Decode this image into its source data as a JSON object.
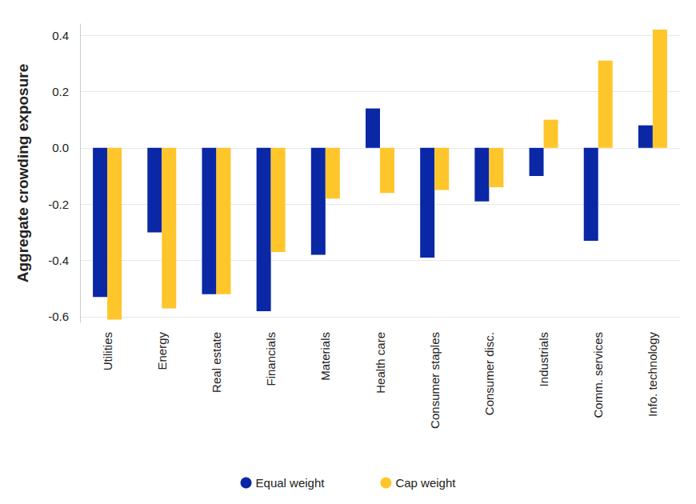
{
  "chart_data": {
    "type": "bar",
    "y_label": "Aggregate crowding exposure",
    "categories": [
      "Utilities",
      "Energy",
      "Real estate",
      "Financials",
      "Materials",
      "Health care",
      "Consumer staples",
      "Consumer disc.",
      "Industrials",
      "Comm. services",
      "Info. technology"
    ],
    "series": [
      {
        "name": "Equal weight",
        "color": "#0a27a6",
        "values": [
          -0.53,
          -0.3,
          -0.52,
          -0.58,
          -0.38,
          0.14,
          -0.39,
          -0.19,
          -0.1,
          -0.33,
          0.08
        ]
      },
      {
        "name": "Cap weight",
        "color": "#ffc62b",
        "values": [
          -0.61,
          -0.57,
          -0.52,
          -0.37,
          -0.18,
          -0.16,
          -0.15,
          -0.14,
          0.1,
          0.31,
          0.42
        ]
      }
    ],
    "ylim": [
      -0.62,
      0.44
    ],
    "yticks": [
      -0.6,
      -0.4,
      -0.2,
      {
        "value": 0,
        "label": "0.0"
      },
      0.2,
      0.4
    ],
    "grid": true,
    "legend": "bottom"
  }
}
